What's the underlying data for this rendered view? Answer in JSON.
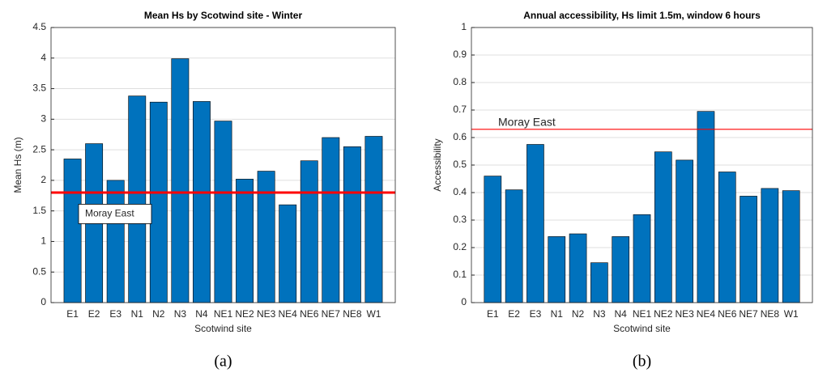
{
  "chart_data": [
    {
      "type": "bar",
      "title": "Mean Hs by Scotwind site - Winter",
      "x_label": "Scotwind site",
      "y_label": "Mean Hs (m)",
      "caption": "(a)",
      "categories": [
        "E1",
        "E2",
        "E3",
        "N1",
        "N2",
        "N3",
        "N4",
        "NE1",
        "NE2",
        "NE3",
        "NE4",
        "NE6",
        "NE7",
        "NE8",
        "W1"
      ],
      "values": [
        2.35,
        2.6,
        2.0,
        3.38,
        3.28,
        3.99,
        3.29,
        2.97,
        2.02,
        2.15,
        1.6,
        2.32,
        2.7,
        2.55,
        2.72
      ],
      "color": "#0072bd",
      "ylim": [
        0,
        4.5
      ],
      "yticks": [
        0,
        0.5,
        1,
        1.5,
        2,
        2.5,
        3,
        3.5,
        4,
        4.5
      ],
      "grid": true,
      "reference_line": {
        "value": 1.8,
        "label": "Moray East",
        "color": "#ff0000"
      }
    },
    {
      "type": "bar",
      "title": "Annual accessibility, Hs limit 1.5m, window 6 hours",
      "x_label": "Scotwind site",
      "y_label": "Accessibility",
      "caption": "(b)",
      "categories": [
        "E1",
        "E2",
        "E3",
        "N1",
        "N2",
        "N3",
        "N4",
        "NE1",
        "NE2",
        "NE3",
        "NE4",
        "NE6",
        "NE7",
        "NE8",
        "W1"
      ],
      "values": [
        0.46,
        0.41,
        0.575,
        0.24,
        0.25,
        0.145,
        0.24,
        0.32,
        0.548,
        0.518,
        0.695,
        0.475,
        0.387,
        0.415,
        0.407
      ],
      "color": "#0072bd",
      "ylim": [
        0,
        1
      ],
      "yticks": [
        0,
        0.1,
        0.2,
        0.3,
        0.4,
        0.5,
        0.6,
        0.7,
        0.8,
        0.9,
        1
      ],
      "grid": true,
      "reference_line": {
        "value": 0.63,
        "label": "Moray East",
        "color": "#ff0000"
      }
    }
  ]
}
